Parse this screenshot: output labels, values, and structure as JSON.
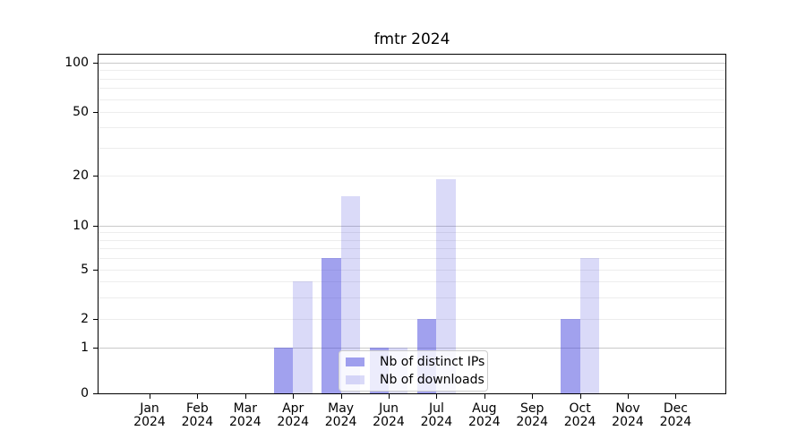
{
  "title": "fmtr 2024",
  "legend": {
    "items": [
      {
        "label": "Nb of distinct IPs",
        "series_key": "distinct_ips"
      },
      {
        "label": "Nb of downloads",
        "series_key": "downloads"
      }
    ]
  },
  "colors": {
    "bar_distinct_ips": "rgba(68,68,221,0.5)",
    "bar_downloads": "rgba(68,68,221,0.2)",
    "grid_major": "#c9c9c9",
    "grid_minor": "#ededed",
    "axis": "#000000",
    "background": "#ffffff"
  },
  "chart_data": {
    "type": "bar",
    "title": "fmtr 2024",
    "categories": [
      "Jan",
      "Feb",
      "Mar",
      "Apr",
      "May",
      "Jun",
      "Jul",
      "Aug",
      "Sep",
      "Oct",
      "Nov",
      "Dec"
    ],
    "category_year": "2024",
    "series": [
      {
        "name": "Nb of distinct IPs",
        "values": [
          0,
          0,
          0,
          1,
          6,
          1,
          2,
          0,
          0,
          2,
          0,
          0
        ]
      },
      {
        "name": "Nb of downloads",
        "values": [
          0,
          0,
          0,
          4,
          15,
          1,
          19,
          0,
          0,
          6,
          0,
          0
        ]
      }
    ],
    "yscale": "log above 1, linear 0-1 (symlog-style with 0 baseline)",
    "ytick_labels": [
      0,
      1,
      2,
      5,
      10,
      20,
      50,
      100
    ],
    "ytick_major_gridlines": [
      1,
      10,
      100
    ],
    "ytick_minor_gridlines": [
      2,
      3,
      4,
      5,
      6,
      7,
      8,
      9,
      20,
      30,
      40,
      50,
      60,
      70,
      80,
      90
    ],
    "ylim": [
      0,
      115
    ],
    "grid": "horizontal major + minor, drawn beneath semi-transparent bars",
    "legend_position": "lower center inside plot",
    "xlabel": "",
    "ylabel": ""
  }
}
